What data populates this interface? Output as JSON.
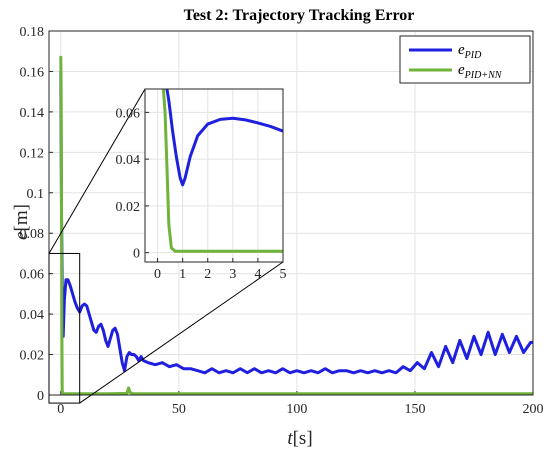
{
  "chart_data": [
    {
      "type": "line",
      "title": "Test 2: Trajectory Tracking Error",
      "xlabel": "t[s]",
      "xlabel_var": "t",
      "xlabel_unit": "[s]",
      "ylabel": "e[m]",
      "ylabel_var": "e",
      "ylabel_unit": "[m]",
      "xlim": [
        -5,
        200
      ],
      "ylim": [
        0,
        0.18
      ],
      "xticks": [
        "0",
        "50",
        "100",
        "150",
        "200"
      ],
      "xtick_values": [
        0,
        50,
        100,
        150,
        200
      ],
      "yticks": [
        "0",
        "0.02",
        "0.04",
        "0.06",
        "0.08",
        "0.1",
        "0.12",
        "0.14",
        "0.16",
        "0.18"
      ],
      "ytick_values": [
        0,
        0.02,
        0.04,
        0.06,
        0.08,
        0.1,
        0.12,
        0.14,
        0.16,
        0.18
      ],
      "grid": true,
      "legend_position": "top-right",
      "series": [
        {
          "name": "e_PID",
          "name_main": "e",
          "name_sub": "PID",
          "color": "#1f1fe0",
          "x": [
            0,
            0.3,
            0.6,
            1.0,
            1.5,
            2.2,
            3,
            4,
            5,
            6,
            7,
            8,
            9,
            10,
            11,
            12,
            13,
            14,
            15,
            16,
            17,
            18,
            19,
            20,
            21,
            22,
            23,
            24,
            25,
            26,
            27,
            28,
            29,
            30,
            31,
            32,
            33,
            34,
            35,
            37,
            40,
            43,
            46,
            49,
            52,
            55,
            58,
            61,
            64,
            67,
            70,
            73,
            76,
            79,
            82,
            85,
            88,
            91,
            94,
            97,
            100,
            103,
            106,
            109,
            112,
            115,
            118,
            121,
            124,
            127,
            130,
            133,
            136,
            139,
            142,
            145,
            148,
            151,
            154,
            157,
            160,
            163,
            166,
            169,
            172,
            175,
            178,
            181,
            184,
            187,
            190,
            193,
            196,
            199,
            200
          ],
          "values": [
            0.16,
            0.09,
            0.055,
            0.029,
            0.047,
            0.057,
            0.057,
            0.054,
            0.05,
            0.046,
            0.043,
            0.041,
            0.044,
            0.045,
            0.044,
            0.04,
            0.036,
            0.032,
            0.031,
            0.034,
            0.035,
            0.032,
            0.027,
            0.024,
            0.028,
            0.032,
            0.033,
            0.03,
            0.023,
            0.016,
            0.012,
            0.019,
            0.021,
            0.02,
            0.02,
            0.019,
            0.017,
            0.019,
            0.017,
            0.016,
            0.015,
            0.016,
            0.014,
            0.015,
            0.013,
            0.013,
            0.012,
            0.011,
            0.013,
            0.011,
            0.012,
            0.011,
            0.013,
            0.011,
            0.013,
            0.011,
            0.012,
            0.011,
            0.013,
            0.011,
            0.012,
            0.011,
            0.012,
            0.011,
            0.013,
            0.011,
            0.012,
            0.012,
            0.011,
            0.012,
            0.011,
            0.012,
            0.011,
            0.012,
            0.011,
            0.014,
            0.012,
            0.016,
            0.013,
            0.021,
            0.014,
            0.024,
            0.016,
            0.027,
            0.018,
            0.029,
            0.02,
            0.031,
            0.02,
            0.03,
            0.021,
            0.029,
            0.021,
            0.026,
            0.026
          ]
        },
        {
          "name": "e_PID+NN",
          "name_main": "e",
          "name_sub": "PID+NN",
          "color": "#6fb33a",
          "x": [
            0,
            0.15,
            0.3,
            0.45,
            0.6,
            1.0,
            2,
            5,
            10,
            20,
            28,
            28.7,
            29.4,
            30.5,
            40,
            60,
            80,
            100,
            120,
            140,
            160,
            180,
            200
          ],
          "values": [
            0.167,
            0.15,
            0.09,
            0.03,
            0.002,
            0.0006,
            0.0006,
            0.0006,
            0.0006,
            0.0006,
            0.0008,
            0.0035,
            0.0012,
            0.0006,
            0.0006,
            0.0006,
            0.0006,
            0.0006,
            0.0006,
            0.0006,
            0.0006,
            0.0006,
            0.0006
          ]
        }
      ]
    },
    {
      "type": "line",
      "title": "",
      "xlim": [
        -0.5,
        5
      ],
      "ylim": [
        -0.004,
        0.07
      ],
      "xticks": [
        "0",
        "1",
        "2",
        "3",
        "4",
        "5"
      ],
      "xtick_values": [
        0,
        1,
        2,
        3,
        4,
        5
      ],
      "yticks": [
        "0",
        "0.02",
        "0.04",
        "0.06"
      ],
      "ytick_values": [
        0,
        0.02,
        0.04,
        0.06
      ],
      "grid": true,
      "zoom_region": {
        "x": [
          -5,
          8
        ],
        "ylim": [
          -0.004,
          0.07
        ]
      },
      "series": [
        {
          "name": "e_PID",
          "color": "#1f1fe0",
          "x": [
            0.3,
            0.45,
            0.6,
            0.75,
            0.9,
            1.0,
            1.1,
            1.3,
            1.6,
            2.0,
            2.5,
            3.0,
            3.5,
            4.0,
            4.5,
            5.0
          ],
          "values": [
            0.075,
            0.065,
            0.052,
            0.041,
            0.032,
            0.029,
            0.032,
            0.041,
            0.05,
            0.055,
            0.057,
            0.0575,
            0.0568,
            0.0555,
            0.054,
            0.052
          ]
        },
        {
          "name": "e_PID+NN",
          "color": "#6fb33a",
          "x": [
            0.2,
            0.3,
            0.38,
            0.45,
            0.55,
            0.7,
            1,
            2,
            3,
            4,
            5
          ],
          "values": [
            0.075,
            0.06,
            0.035,
            0.012,
            0.002,
            0.0006,
            0.0006,
            0.0006,
            0.0006,
            0.0006,
            0.0006
          ]
        }
      ]
    }
  ]
}
